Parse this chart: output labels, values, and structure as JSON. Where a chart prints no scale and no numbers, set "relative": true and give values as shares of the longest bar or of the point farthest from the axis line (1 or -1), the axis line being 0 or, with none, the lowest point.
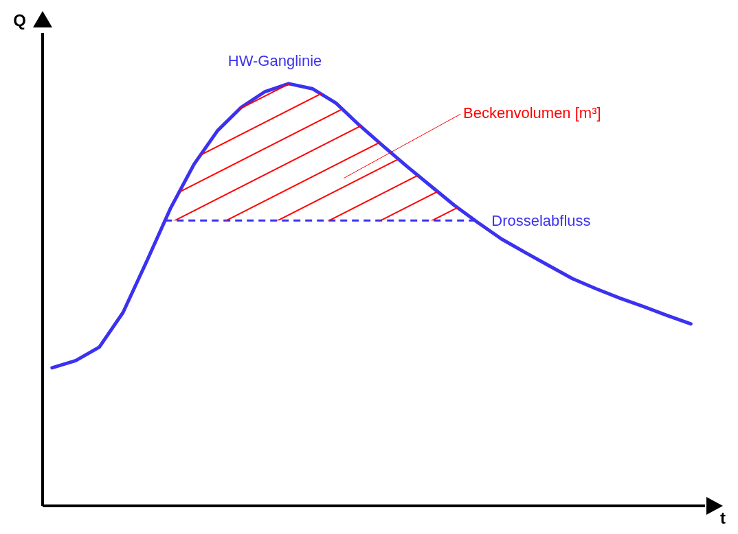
{
  "chart_data": {
    "type": "line",
    "relative": true,
    "xlabel": "t",
    "ylabel": "Q",
    "tick_labels": false,
    "marker": "none",
    "line_style": "solid",
    "categories": [
      null,
      null,
      null,
      null,
      null,
      null,
      null,
      null,
      null,
      null,
      null,
      null,
      null,
      null,
      null,
      null,
      null,
      null,
      null,
      null,
      null,
      null,
      null,
      null,
      null,
      null,
      null,
      null
    ],
    "series": [
      {
        "name": "HW-Ganglinie",
        "color": "#3b32f0",
        "values": [
          0.327,
          0.344,
          0.376,
          0.458,
          0.579,
          0.704,
          0.809,
          0.889,
          0.944,
          0.981,
          1,
          0.988,
          0.954,
          0.901,
          0.852,
          0.804,
          0.758,
          0.712,
          0.671,
          0.632,
          0.6,
          0.569,
          0.538,
          0.514,
          0.492,
          0.472,
          0.451,
          0.431
        ]
      }
    ],
    "ref_lines": [
      {
        "axis": "y",
        "value": 0.676,
        "label": "Drosselabfluss",
        "color": "#3b32f0",
        "line_style": "dashed"
      }
    ],
    "annotations": [
      "Beckenvolumen [m³]"
    ]
  }
}
